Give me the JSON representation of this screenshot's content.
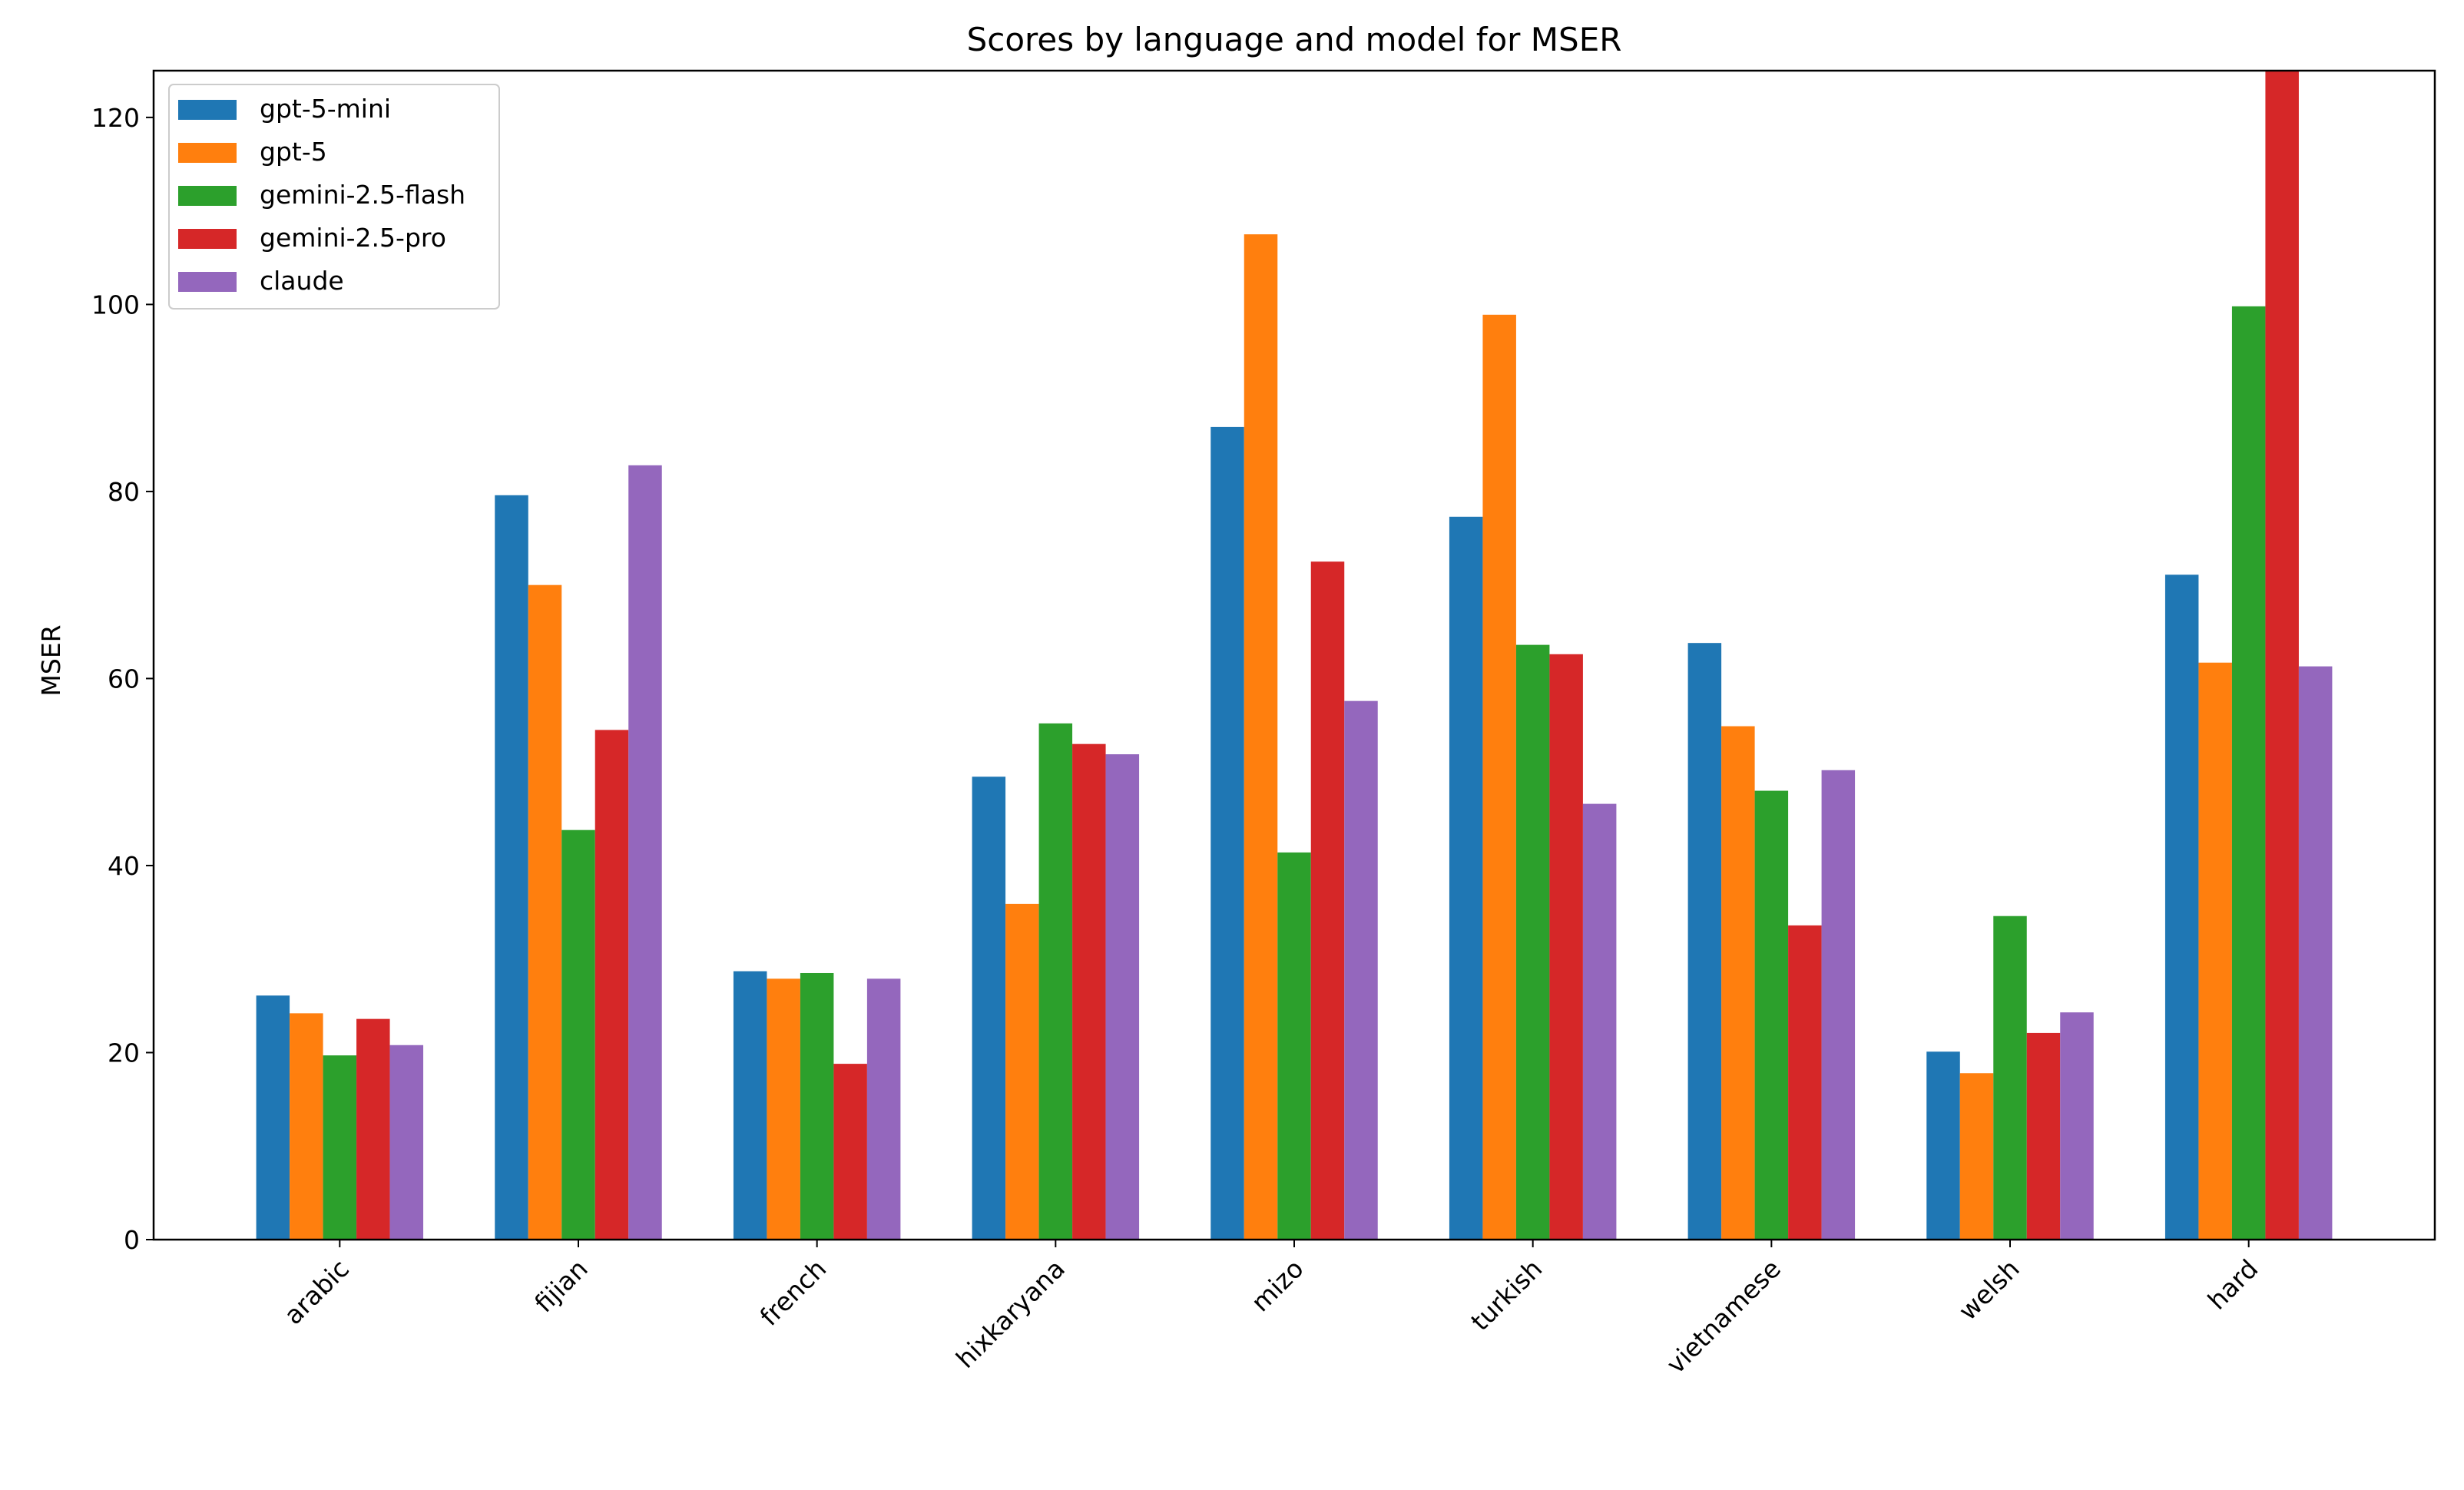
{
  "chart_data": {
    "type": "bar",
    "title": "Scores by language and model for MSER",
    "xlabel": "",
    "ylabel": "MSER",
    "ylim": [
      0,
      125
    ],
    "yticks": [
      0,
      20,
      40,
      60,
      80,
      100,
      120
    ],
    "grid": false,
    "legend_position": "top-left",
    "categories": [
      "arabic",
      "fijian",
      "french",
      "hixkaryana",
      "mizo",
      "turkish",
      "vietnamese",
      "welsh",
      "hard"
    ],
    "series": [
      {
        "name": "gpt-5-mini",
        "color": "#1f77b4",
        "values": [
          26.1,
          79.6,
          28.7,
          49.5,
          86.9,
          77.3,
          63.8,
          20.1,
          71.1
        ]
      },
      {
        "name": "gpt-5",
        "color": "#ff7f0e",
        "values": [
          24.2,
          70.0,
          27.9,
          35.9,
          107.5,
          98.9,
          54.9,
          17.8,
          61.7
        ]
      },
      {
        "name": "gemini-2.5-flash",
        "color": "#2ca02c",
        "values": [
          19.7,
          43.8,
          28.5,
          55.2,
          41.4,
          63.6,
          48.0,
          34.6,
          99.8
        ]
      },
      {
        "name": "gemini-2.5-pro",
        "color": "#d62728",
        "values": [
          23.6,
          54.5,
          18.8,
          53.0,
          72.5,
          62.6,
          33.6,
          22.1,
          126
        ]
      },
      {
        "name": "claude",
        "color": "#9467bd",
        "values": [
          20.8,
          82.8,
          27.9,
          51.9,
          57.6,
          46.6,
          50.2,
          24.3,
          61.3
        ]
      }
    ]
  }
}
